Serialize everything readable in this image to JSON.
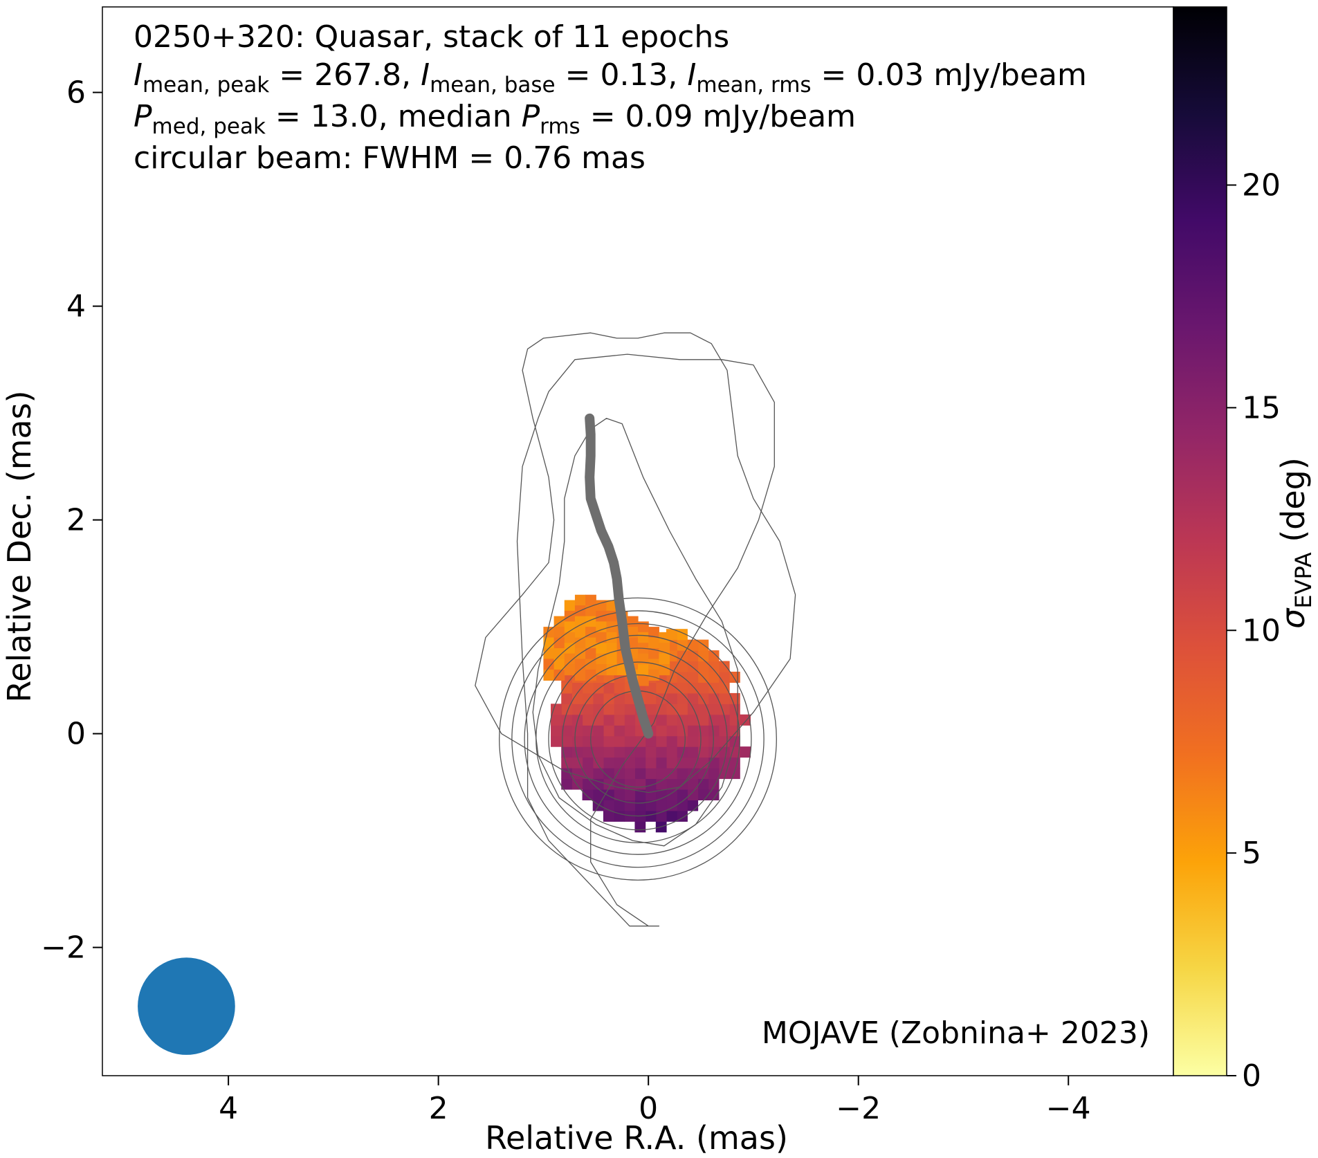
{
  "chart_data": {
    "type": "heatmap",
    "title": "0250+320: Quasar, stack of 11 epochs",
    "annotation_lines": [
      {
        "pre": "",
        "v1": "I",
        "s1": "mean, peak",
        "m1": " = 267.8, ",
        "v2": "I",
        "s2": "mean, base",
        "m2": " = 0.13, ",
        "v3": "I",
        "s3": "mean, rms",
        "post": " = 0.03 mJy/beam"
      },
      {
        "pre": "",
        "v1": "P",
        "s1": "med, peak",
        "m1": " = 13.0, median ",
        "v2": "P",
        "s2": "rms",
        "post": " = 0.09 mJy/beam"
      },
      {
        "text": "circular beam: FWHM = 0.76 mas"
      }
    ],
    "credit": "MOJAVE (Zobnina+ 2023)",
    "xlabel": "Relative R.A. (mas)",
    "ylabel": "Relative Dec. (mas)",
    "xlim": [
      5.2,
      -5.0
    ],
    "ylim": [
      -3.2,
      6.8
    ],
    "xticks": [
      4,
      2,
      0,
      -2,
      -4
    ],
    "xtick_labels": [
      "4",
      "2",
      "0",
      "−2",
      "−4"
    ],
    "yticks": [
      -2,
      0,
      2,
      4,
      6
    ],
    "ytick_labels": [
      "−2",
      "0",
      "2",
      "4",
      "6"
    ],
    "colorbar": {
      "label_symbol": "σ",
      "label_sub": "EVPA",
      "label_unit": " (deg)",
      "range": [
        0,
        24
      ],
      "ticks": [
        0,
        5,
        10,
        15,
        20
      ],
      "tick_labels": [
        "0",
        "5",
        "10",
        "15",
        "20"
      ],
      "colormap": "inferno_r"
    },
    "beam": {
      "x": 4.4,
      "y": -2.55,
      "fwhm_mas": 0.76,
      "color": "#1f77b4"
    },
    "contours": {
      "color": "#555555",
      "levels": [
        {
          "x": [
            0.18,
            0.95,
            1.15,
            1.15,
            1.2,
            1.25,
            1.2,
            1.05,
            0.95,
            0.7,
            0.2,
            -0.3,
            -0.7,
            -1.0,
            -1.2,
            -1.2,
            -1.05,
            -0.85,
            -0.55,
            -0.25,
            -0.05,
            0.25,
            0.55,
            0.55,
            0.3,
            0.0,
            -0.1,
            -0.1,
            0.18
          ],
          "y": [
            -1.8,
            -1.0,
            -0.6,
            0.0,
            0.7,
            1.8,
            2.5,
            2.95,
            3.2,
            3.5,
            3.55,
            3.5,
            3.5,
            3.45,
            3.1,
            2.5,
            2.0,
            1.55,
            1.1,
            0.6,
            0.1,
            -0.3,
            -0.8,
            -1.2,
            -1.6,
            -1.8,
            -1.8,
            -1.8,
            -1.8
          ]
        },
        {
          "x": [
            0.0,
            0.3,
            0.8,
            1.4,
            1.65,
            1.55,
            1.2,
            0.95,
            0.9,
            0.95,
            1.1,
            1.2,
            1.15,
            1.0,
            0.55,
            0.3,
            0.1,
            -0.15,
            -0.4,
            -0.6,
            -0.75,
            -0.8,
            -0.85,
            -1.0,
            -1.25,
            -1.4,
            -1.35,
            -1.0,
            -0.6,
            -0.3,
            0.0
          ],
          "y": [
            -0.55,
            -0.5,
            -0.35,
            0.0,
            0.45,
            0.9,
            1.3,
            1.6,
            2.0,
            2.4,
            2.95,
            3.4,
            3.6,
            3.7,
            3.75,
            3.7,
            3.7,
            3.75,
            3.75,
            3.65,
            3.4,
            3.0,
            2.6,
            2.2,
            1.8,
            1.3,
            0.7,
            0.2,
            -0.25,
            -0.5,
            -0.55
          ]
        },
        {
          "x": [
            0.15,
            0.5,
            0.85,
            1.05,
            1.1,
            1.05,
            0.95,
            0.85,
            0.8,
            0.8,
            0.7,
            0.55,
            0.4,
            0.25,
            0.05,
            -0.2,
            -0.45,
            -0.7,
            -0.85,
            -0.85,
            -0.7,
            -0.45,
            -0.15,
            0.15
          ],
          "y": [
            -1.0,
            -0.85,
            -0.6,
            -0.2,
            0.2,
            0.6,
            1.0,
            1.4,
            1.8,
            2.2,
            2.6,
            2.85,
            2.95,
            2.9,
            2.4,
            1.9,
            1.45,
            1.05,
            0.6,
            0.0,
            -0.5,
            -0.85,
            -1.05,
            -1.0
          ]
        }
      ],
      "circle_radii": [
        0.45,
        0.6,
        0.72,
        0.85,
        0.97,
        1.08,
        1.2,
        1.32
      ],
      "circle_center": [
        0.1,
        -0.05
      ]
    },
    "ridge_line": {
      "color": "#6e6e6e",
      "x": [
        0.0,
        0.05,
        0.15,
        0.22,
        0.25,
        0.28,
        0.3,
        0.33,
        0.38,
        0.45,
        0.5,
        0.55,
        0.56,
        0.55,
        0.55,
        0.56
      ],
      "y": [
        0.0,
        0.15,
        0.5,
        0.8,
        1.05,
        1.25,
        1.45,
        1.6,
        1.75,
        1.9,
        2.05,
        2.2,
        2.4,
        2.6,
        2.8,
        2.95
      ]
    },
    "heatmap": {
      "grid_step_mas": 0.1,
      "center": [
        0.0,
        0.05
      ],
      "core_radius_mas": 0.92,
      "note_pixels": "sigma EVPA per pixel, increasing from north to south",
      "north_value": 5.5,
      "south_value": 18.5,
      "orange_cap": {
        "x": [
          0.95,
          0.85,
          0.75,
          0.65,
          0.55,
          0.45,
          0.35,
          0.25,
          0.15,
          0.05,
          -0.05,
          -0.15
        ],
        "y_top": [
          1.0,
          1.1,
          1.25,
          1.3,
          1.3,
          1.25,
          1.25,
          1.15,
          1.1,
          1.05,
          1.0,
          0.95
        ],
        "value": 6.2
      }
    }
  }
}
